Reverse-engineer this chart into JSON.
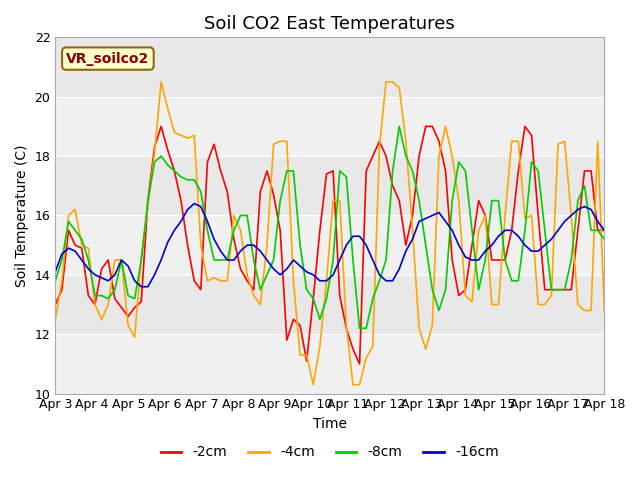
{
  "title": "Soil CO2 East Temperatures",
  "xlabel": "Time",
  "ylabel": "Soil Temperature (C)",
  "ylim": [
    10,
    22
  ],
  "yticks": [
    10,
    12,
    14,
    16,
    18,
    20,
    22
  ],
  "label_box_text": "VR_soilco2",
  "x_tick_labels": [
    "Apr 3",
    "Apr 4",
    "Apr 5",
    "Apr 6",
    "Apr 7",
    "Apr 8",
    "Apr 9",
    "Apr 10",
    "Apr 11",
    "Apr 12",
    "Apr 13",
    "Apr 14",
    "Apr 15",
    "Apr 16",
    "Apr 17",
    "Apr 18"
  ],
  "colors": {
    "-2cm": "#ff0000",
    "-4cm": "#ffa500",
    "-8cm": "#00cc00",
    "-16cm": "#0000cc"
  },
  "background_color": "#e8e8e8",
  "band_color": "#f0f0f0",
  "series": {
    "-2cm": [
      13.0,
      13.5,
      15.5,
      15.0,
      14.9,
      13.3,
      13.0,
      14.2,
      14.5,
      13.2,
      12.9,
      12.6,
      12.9,
      13.1,
      16.5,
      18.3,
      19.0,
      18.2,
      17.5,
      16.5,
      15.0,
      13.8,
      13.5,
      17.8,
      18.4,
      17.5,
      16.8,
      15.2,
      14.2,
      13.8,
      13.5,
      16.8,
      17.5,
      16.7,
      15.5,
      11.8,
      12.5,
      12.3,
      11.1,
      13.2,
      15.5,
      17.4,
      17.5,
      13.3,
      12.2,
      11.5,
      11.0,
      17.5,
      18.0,
      18.5,
      18.0,
      17.0,
      16.5,
      15.0,
      16.0,
      18.0,
      19.0,
      19.0,
      18.5,
      17.5,
      14.5,
      13.3,
      13.5,
      15.0,
      16.5,
      16.0,
      14.5,
      14.5,
      14.5,
      15.5,
      17.5,
      19.0,
      18.7,
      16.0,
      13.5,
      13.5,
      13.5,
      13.5,
      13.5,
      15.5,
      17.5,
      17.5,
      15.5,
      15.5
    ],
    "-4cm": [
      12.5,
      13.8,
      16.0,
      16.2,
      15.0,
      14.9,
      13.0,
      12.5,
      13.0,
      14.5,
      14.5,
      12.3,
      11.9,
      14.6,
      16.3,
      18.1,
      20.5,
      19.6,
      18.8,
      18.7,
      18.6,
      18.7,
      15.0,
      13.8,
      13.9,
      13.8,
      13.8,
      16.0,
      15.5,
      14.0,
      13.3,
      13.0,
      15.0,
      18.4,
      18.5,
      18.5,
      13.8,
      11.3,
      11.3,
      10.3,
      11.6,
      13.8,
      16.5,
      16.5,
      12.3,
      10.3,
      10.3,
      11.2,
      11.6,
      18.3,
      20.5,
      20.5,
      20.3,
      18.5,
      15.5,
      12.2,
      11.5,
      12.3,
      18.0,
      19.0,
      18.0,
      16.5,
      13.3,
      13.1,
      15.5,
      16.0,
      13.0,
      13.0,
      16.0,
      18.5,
      18.5,
      15.9,
      16.0,
      13.0,
      13.0,
      13.3,
      18.4,
      18.5,
      16.0,
      13.0,
      12.8,
      12.8,
      18.5,
      12.8
    ],
    "-8cm": [
      13.8,
      14.5,
      15.8,
      15.5,
      15.2,
      14.5,
      13.3,
      13.3,
      13.2,
      13.5,
      14.5,
      13.3,
      13.2,
      14.5,
      16.5,
      17.8,
      18.0,
      17.7,
      17.5,
      17.3,
      17.2,
      17.2,
      16.8,
      15.5,
      14.5,
      14.5,
      14.5,
      15.5,
      16.0,
      16.0,
      14.5,
      13.5,
      14.0,
      14.5,
      16.5,
      17.5,
      17.5,
      15.0,
      13.5,
      13.2,
      12.5,
      13.2,
      14.5,
      17.5,
      17.3,
      14.5,
      12.2,
      12.2,
      13.2,
      13.8,
      14.5,
      17.5,
      19.0,
      18.0,
      17.5,
      16.5,
      15.0,
      13.5,
      12.8,
      13.5,
      16.5,
      17.8,
      17.5,
      15.5,
      13.5,
      14.5,
      16.5,
      16.5,
      14.5,
      13.8,
      13.8,
      15.5,
      17.8,
      17.5,
      15.5,
      13.5,
      13.5,
      13.5,
      14.5,
      16.5,
      17.0,
      15.5,
      15.5,
      15.2
    ],
    "-16cm": [
      14.1,
      14.7,
      14.9,
      14.8,
      14.5,
      14.2,
      14.0,
      13.9,
      13.8,
      14.0,
      14.5,
      14.3,
      13.8,
      13.6,
      13.6,
      14.0,
      14.5,
      15.1,
      15.5,
      15.8,
      16.2,
      16.4,
      16.3,
      15.8,
      15.2,
      14.8,
      14.5,
      14.5,
      14.8,
      15.0,
      15.0,
      14.8,
      14.5,
      14.2,
      14.0,
      14.2,
      14.5,
      14.3,
      14.1,
      14.0,
      13.8,
      13.8,
      14.0,
      14.5,
      15.0,
      15.3,
      15.3,
      15.0,
      14.5,
      14.0,
      13.8,
      13.8,
      14.2,
      14.8,
      15.2,
      15.8,
      15.9,
      16.0,
      16.1,
      15.8,
      15.5,
      15.0,
      14.6,
      14.5,
      14.5,
      14.8,
      15.0,
      15.3,
      15.5,
      15.5,
      15.3,
      15.0,
      14.8,
      14.8,
      15.0,
      15.2,
      15.5,
      15.8,
      16.0,
      16.2,
      16.3,
      16.2,
      15.8,
      15.5
    ]
  }
}
